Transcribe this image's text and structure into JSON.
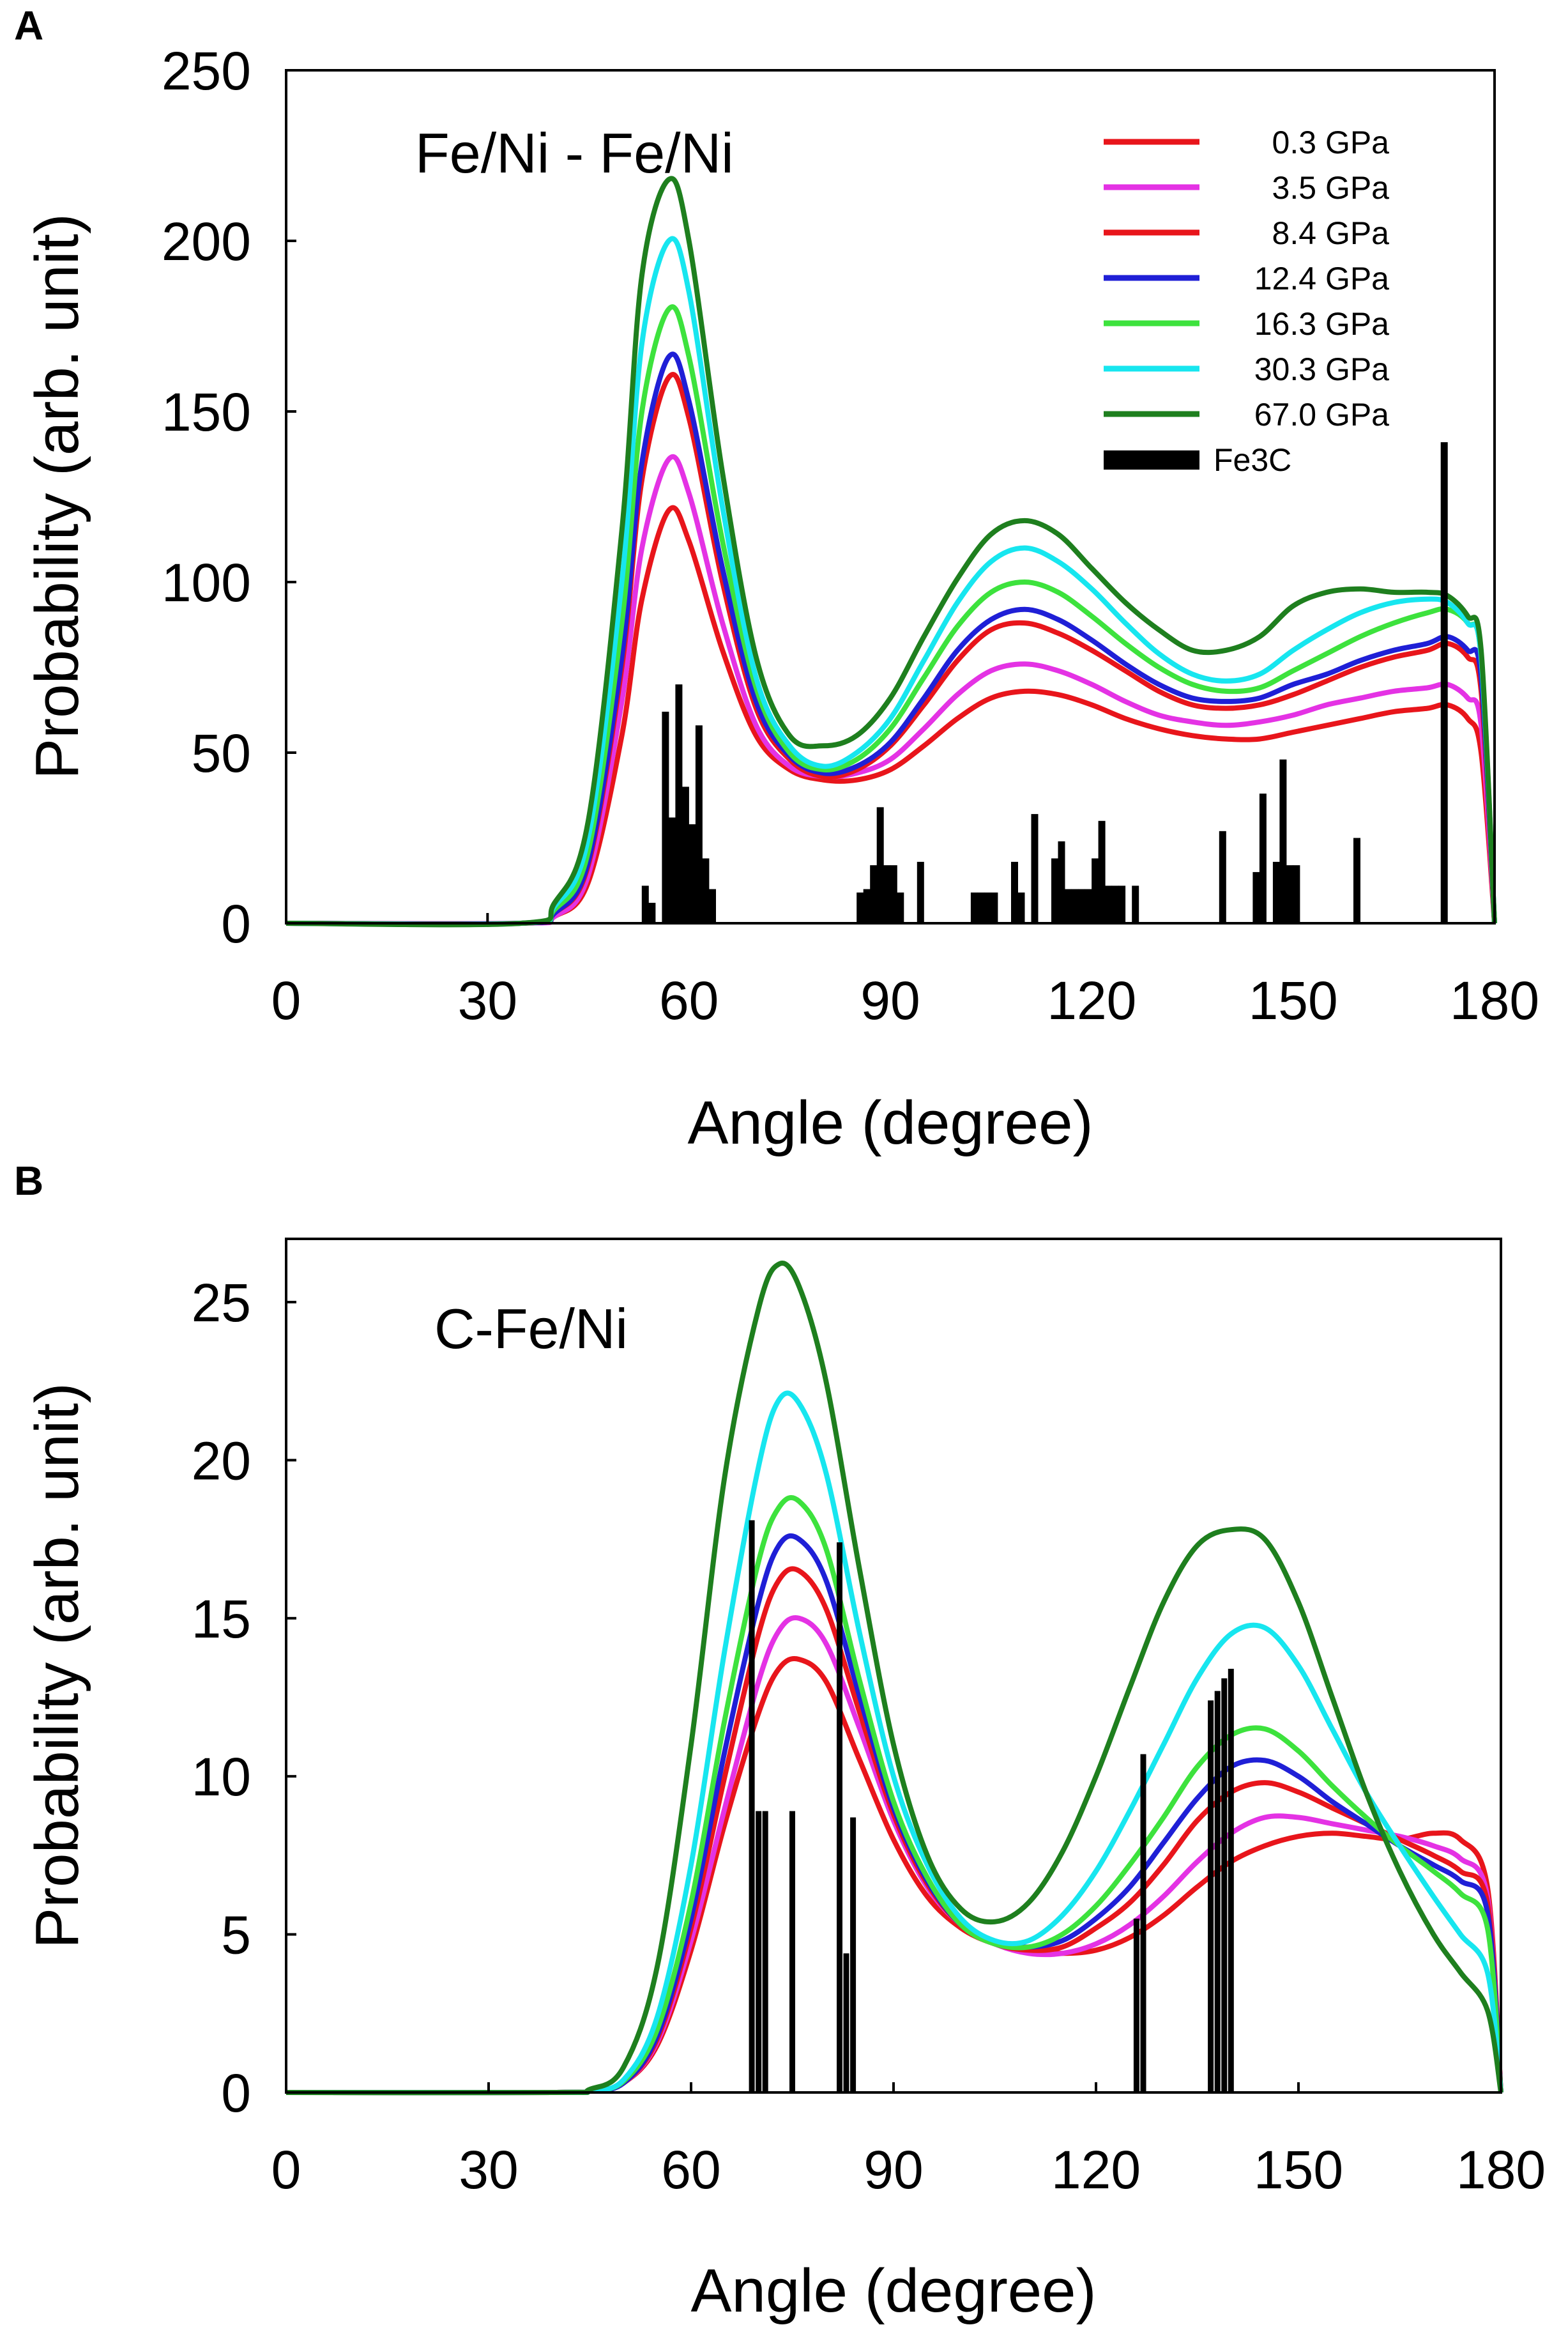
{
  "panels": [
    {
      "letter": "A",
      "title": "Fe/Ni - Fe/Ni",
      "xlabel": "Angle (degree)",
      "ylabel": "Probability (arb. unit)",
      "xticks": [
        "0",
        "30",
        "60",
        "90",
        "120",
        "150",
        "180"
      ],
      "yticks": [
        "0",
        "50",
        "100",
        "150",
        "200",
        "250"
      ]
    },
    {
      "letter": "B",
      "title": "C-Fe/Ni",
      "xlabel": "Angle (degree)",
      "ylabel": "Probability (arb. unit)",
      "xticks": [
        "0",
        "30",
        "60",
        "90",
        "120",
        "150",
        "180"
      ],
      "yticks": [
        "0",
        "5",
        "10",
        "15",
        "20",
        "25"
      ]
    }
  ],
  "legend": [
    {
      "label": "0.3 GPa",
      "color": "#e8151b"
    },
    {
      "label": "3.5 GPa",
      "color": "#e432e4"
    },
    {
      "label": "8.4 GPa",
      "color": "#e8151b"
    },
    {
      "label": "12.4 GPa",
      "color": "#1f1fd6"
    },
    {
      "label": "16.3 GPa",
      "color": "#3de23d"
    },
    {
      "label": "30.3 GPa",
      "color": "#17e6ef"
    },
    {
      "label": "67.0 GPa",
      "color": "#1e7f1e"
    },
    {
      "label": "Fe3C",
      "color": "#000000"
    }
  ],
  "chart_data": [
    {
      "type": "line",
      "title": "Fe/Ni - Fe/Ni",
      "xlabel": "Angle (degree)",
      "ylabel": "Probability (arb. unit)",
      "xlim": [
        0,
        180
      ],
      "ylim": [
        0,
        250
      ],
      "x": [
        0,
        35,
        40,
        45,
        50,
        53,
        57,
        60,
        65,
        70,
        75,
        80,
        85,
        90,
        95,
        100,
        105,
        110,
        115,
        120,
        125,
        130,
        135,
        140,
        145,
        150,
        155,
        160,
        165,
        170,
        173,
        176,
        178,
        180
      ],
      "series": [
        {
          "name": "0.3 GPa",
          "color": "#e8151b",
          "values": [
            0,
            0,
            2,
            12,
            55,
            95,
            121,
            112,
            80,
            55,
            45,
            42,
            42,
            45,
            52,
            60,
            66,
            68,
            67,
            64,
            60,
            57,
            55,
            54,
            54,
            56,
            58,
            60,
            62,
            63,
            64,
            60,
            50,
            0
          ]
        },
        {
          "name": "3.5 GPa",
          "color": "#e432e4",
          "values": [
            0,
            0,
            2,
            14,
            65,
            110,
            136,
            126,
            88,
            58,
            46,
            43,
            44,
            48,
            57,
            67,
            74,
            76,
            74,
            70,
            65,
            61,
            59,
            58,
            59,
            61,
            64,
            66,
            68,
            69,
            70,
            66,
            58,
            0
          ]
        },
        {
          "name": "8.4 GPa",
          "color": "#e8151b",
          "values": [
            0,
            0,
            3,
            17,
            75,
            130,
            160,
            148,
            100,
            63,
            48,
            43,
            45,
            52,
            64,
            77,
            86,
            88,
            85,
            80,
            74,
            68,
            64,
            63,
            64,
            67,
            71,
            75,
            78,
            80,
            82,
            78,
            68,
            0
          ]
        },
        {
          "name": "12.4 GPa",
          "color": "#1f1fd6",
          "values": [
            0,
            0,
            3,
            18,
            78,
            135,
            166,
            153,
            104,
            65,
            49,
            44,
            46,
            53,
            66,
            80,
            89,
            92,
            89,
            83,
            76,
            70,
            66,
            65,
            66,
            70,
            73,
            77,
            80,
            82,
            84,
            80,
            72,
            0
          ]
        },
        {
          "name": "16.3 GPa",
          "color": "#3de23d",
          "values": [
            0,
            0,
            4,
            21,
            88,
            150,
            180,
            166,
            112,
            69,
            50,
            45,
            48,
            57,
            72,
            87,
            97,
            100,
            97,
            90,
            82,
            75,
            70,
            68,
            69,
            74,
            79,
            84,
            88,
            91,
            92,
            88,
            78,
            0
          ]
        },
        {
          "name": "30.3 GPa",
          "color": "#17e6ef",
          "values": [
            0,
            0,
            5,
            25,
            100,
            170,
            200,
            185,
            122,
            72,
            52,
            46,
            50,
            60,
            77,
            94,
            106,
            110,
            106,
            98,
            88,
            79,
            73,
            71,
            73,
            80,
            86,
            91,
            94,
            95,
            94,
            88,
            78,
            0
          ]
        },
        {
          "name": "67.0 GPa",
          "color": "#1e7f1e",
          "values": [
            0,
            0,
            6,
            30,
            115,
            190,
            218,
            200,
            132,
            78,
            55,
            52,
            55,
            66,
            84,
            101,
            114,
            118,
            114,
            104,
            94,
            86,
            80,
            80,
            84,
            93,
            97,
            98,
            97,
            97,
            96,
            90,
            80,
            0
          ]
        }
      ],
      "bars": {
        "name": "Fe3C",
        "x": [
          53.5,
          54.5,
          56.5,
          57.5,
          58.5,
          59.5,
          60.5,
          61.5,
          62.5,
          63.5,
          85.5,
          86.5,
          87.5,
          88.5,
          89.5,
          90.5,
          91.5,
          94.5,
          102.5,
          103.5,
          104.5,
          105.5,
          108.5,
          109.5,
          111.5,
          114.5,
          115.5,
          116.5,
          117.5,
          118.5,
          119.5,
          120.5,
          121.5,
          122.5,
          123.5,
          124.5,
          126.5,
          139.5,
          144.5,
          145.5,
          147.5,
          148.5,
          149.5,
          150.5,
          159.5,
          172.5
        ],
        "values": [
          11,
          6,
          62,
          31,
          70,
          40,
          29,
          58,
          19,
          10,
          9,
          10,
          17,
          34,
          17,
          17,
          9,
          18,
          9,
          9,
          9,
          9,
          18,
          9,
          32,
          19,
          24,
          10,
          10,
          10,
          10,
          19,
          30,
          11,
          11,
          11,
          11,
          27,
          15,
          38,
          18,
          48,
          17,
          17,
          25,
          141
        ]
      }
    },
    {
      "type": "line",
      "title": "C-Fe/Ni",
      "xlabel": "Angle (degree)",
      "ylabel": "Probability (arb. unit)",
      "xlim": [
        0,
        180
      ],
      "ylim": [
        0,
        27
      ],
      "x": [
        0,
        40,
        45,
        50,
        55,
        60,
        65,
        70,
        73,
        76,
        80,
        85,
        90,
        95,
        100,
        105,
        110,
        115,
        120,
        125,
        130,
        135,
        140,
        145,
        150,
        155,
        160,
        165,
        170,
        174,
        178,
        180
      ],
      "series": [
        {
          "name": "0.3 GPa",
          "color": "#e8151b",
          "values": [
            0,
            0,
            0.05,
            0.3,
            1.5,
            4.5,
            8.5,
            12.0,
            13.4,
            13.7,
            13.0,
            10.5,
            8.0,
            6.2,
            5.2,
            4.7,
            4.5,
            4.4,
            4.5,
            4.9,
            5.6,
            6.5,
            7.3,
            7.8,
            8.1,
            8.2,
            8.1,
            8.0,
            8.2,
            8.0,
            6.5,
            0
          ]
        },
        {
          "name": "3.5 GPa",
          "color": "#e432e4",
          "values": [
            0,
            0,
            0.05,
            0.3,
            1.6,
            4.8,
            9.0,
            13.0,
            14.6,
            15.0,
            14.2,
            11.5,
            8.6,
            6.5,
            5.3,
            4.7,
            4.4,
            4.4,
            4.7,
            5.3,
            6.2,
            7.3,
            8.2,
            8.7,
            8.7,
            8.5,
            8.3,
            8.1,
            7.8,
            7.4,
            6.2,
            0
          ]
        },
        {
          "name": "8.4 GPa",
          "color": "#e8151b",
          "values": [
            0,
            0,
            0.05,
            0.3,
            1.7,
            5.2,
            10.0,
            14.5,
            16.2,
            16.5,
            15.3,
            12.0,
            8.8,
            6.6,
            5.3,
            4.7,
            4.5,
            4.6,
            5.2,
            6.0,
            7.2,
            8.6,
            9.5,
            9.8,
            9.5,
            9.0,
            8.5,
            8.0,
            7.5,
            7.0,
            6.0,
            0
          ]
        },
        {
          "name": "12.4 GPa",
          "color": "#1f1fd6",
          "values": [
            0,
            0,
            0.05,
            0.3,
            1.8,
            5.5,
            10.8,
            15.5,
            17.3,
            17.5,
            16.2,
            12.5,
            9.0,
            6.7,
            5.3,
            4.7,
            4.6,
            4.8,
            5.5,
            6.5,
            7.9,
            9.3,
            10.3,
            10.5,
            10.0,
            9.2,
            8.5,
            7.8,
            7.2,
            6.7,
            5.7,
            0
          ]
        },
        {
          "name": "16.3 GPa",
          "color": "#3de23d",
          "values": [
            0,
            0,
            0.05,
            0.35,
            2.0,
            6.0,
            11.8,
            16.8,
            18.5,
            18.7,
            17.2,
            13.0,
            9.2,
            6.8,
            5.3,
            4.7,
            4.6,
            5.0,
            5.9,
            7.2,
            8.7,
            10.3,
            11.3,
            11.5,
            10.8,
            9.7,
            8.7,
            7.8,
            7.0,
            6.3,
            5.2,
            0
          ]
        },
        {
          "name": "30.3 GPa",
          "color": "#17e6ef",
          "values": [
            0,
            0,
            0.05,
            0.4,
            2.4,
            7.2,
            14.0,
            19.8,
            21.9,
            21.8,
            19.6,
            14.5,
            10.0,
            7.2,
            5.5,
            4.8,
            4.8,
            5.6,
            7.0,
            8.9,
            11.0,
            13.1,
            14.5,
            14.7,
            13.5,
            11.5,
            9.5,
            7.8,
            6.2,
            5.0,
            3.8,
            0
          ]
        },
        {
          "name": "67.0 GPa",
          "color": "#1e7f1e",
          "values": [
            0,
            0,
            0.1,
            0.8,
            4.0,
            11.0,
            19.5,
            24.8,
            26.2,
            25.5,
            22.5,
            16.5,
            11.0,
            7.5,
            5.8,
            5.4,
            6.0,
            7.6,
            10.0,
            12.8,
            15.5,
            17.3,
            17.8,
            17.5,
            15.5,
            12.5,
            9.5,
            7.0,
            5.0,
            3.8,
            2.6,
            0
          ]
        }
      ],
      "bars": {
        "name": "Fe3C",
        "x": [
          69,
          70,
          71,
          75,
          82,
          83,
          84,
          126,
          127,
          137,
          138,
          139,
          140
        ],
        "values": [
          18.1,
          8.9,
          8.9,
          8.9,
          17.4,
          4.4,
          8.7,
          5.5,
          10.7,
          12.4,
          12.7,
          13.1,
          13.4
        ]
      }
    }
  ]
}
